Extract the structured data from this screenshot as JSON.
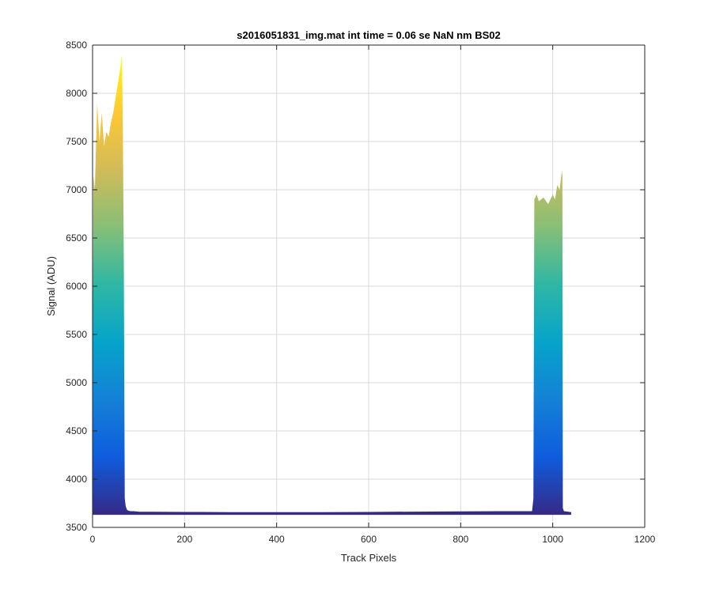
{
  "chart_data": {
    "type": "area",
    "title": "s2016051831_img.mat int time = 0.06 se  NaN nm BS02",
    "xlabel": "Track Pixels",
    "ylabel": "Signal (ADU)",
    "xlim": [
      0,
      1200
    ],
    "ylim": [
      3500,
      8500
    ],
    "xticks": [
      0,
      200,
      400,
      600,
      800,
      1000,
      1200
    ],
    "yticks": [
      3500,
      4000,
      4500,
      5000,
      5500,
      6000,
      6500,
      7000,
      7500,
      8000,
      8500
    ],
    "grid": true,
    "colormap": "parula",
    "colormap_stops": [
      "#352a87",
      "#0f5cdd",
      "#1481d6",
      "#06a4ca",
      "#2eb7a4",
      "#87bf77",
      "#d1bb59",
      "#fec832",
      "#f9fb0e"
    ],
    "series": [
      {
        "baseline": 3630,
        "x": [
          0,
          2,
          5,
          10,
          15,
          20,
          25,
          30,
          35,
          40,
          45,
          50,
          55,
          60,
          64,
          66,
          68,
          70,
          72,
          75,
          80,
          90,
          100,
          200,
          300,
          400,
          500,
          600,
          700,
          800,
          900,
          950,
          955,
          958,
          960,
          965,
          970,
          980,
          990,
          1000,
          1005,
          1010,
          1015,
          1020,
          1021,
          1022,
          1025,
          1040
        ],
        "y": [
          5000,
          7150,
          7000,
          7900,
          7500,
          7800,
          7450,
          7600,
          7550,
          7700,
          7800,
          7950,
          8100,
          8250,
          8400,
          7500,
          6200,
          3800,
          3720,
          3680,
          3670,
          3660,
          3655,
          3652,
          3650,
          3650,
          3650,
          3652,
          3655,
          3658,
          3660,
          3662,
          3665,
          3800,
          6900,
          6950,
          6880,
          6920,
          6850,
          6950,
          6900,
          7050,
          7000,
          7200,
          7150,
          3700,
          3660,
          3650
        ]
      }
    ]
  }
}
